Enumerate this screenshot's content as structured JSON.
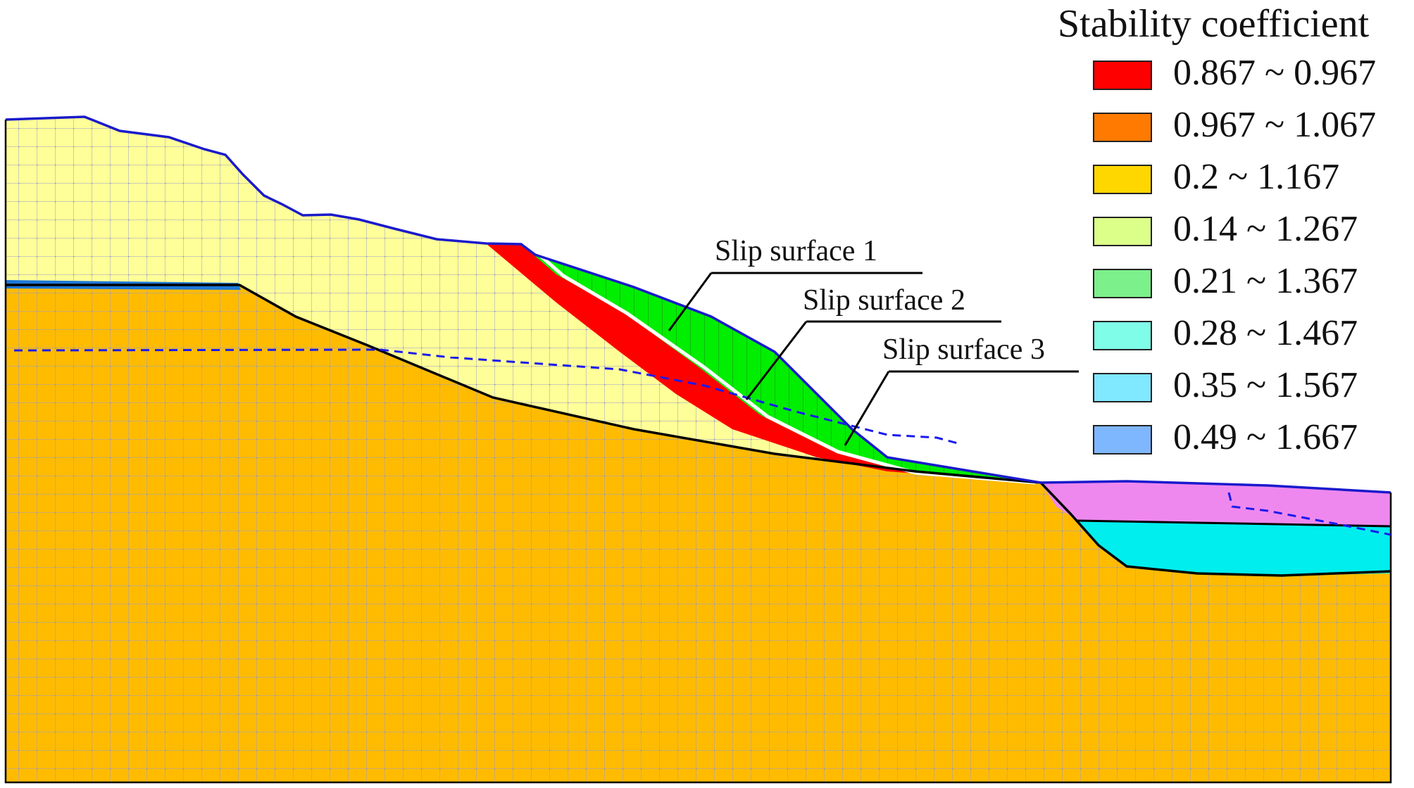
{
  "legend": {
    "title": "Stability coefficient",
    "items": [
      {
        "label": "0.867 ~ 0.967",
        "color": "#ff0000"
      },
      {
        "label": "0.967 ~ 1.067",
        "color": "#ff7a00"
      },
      {
        "label": "0.2 ~ 1.167",
        "color": "#ffd700"
      },
      {
        "label": "0.14 ~ 1.267",
        "color": "#dcff8a"
      },
      {
        "label": "0.21 ~ 1.367",
        "color": "#7cf08a"
      },
      {
        "label": "0.28 ~ 1.467",
        "color": "#7ffde8"
      },
      {
        "label": "0.35 ~ 1.567",
        "color": "#80e8ff"
      },
      {
        "label": "0.49 ~ 1.667",
        "color": "#7fb7ff"
      }
    ]
  },
  "callouts": {
    "slip1": "Slip surface 1",
    "slip2": "Slip surface 2",
    "slip3": "Slip surface 3"
  },
  "colors": {
    "upper_soil": "#ffff99",
    "bedrock": "#ffbb00",
    "slip_zone_red": "#ff0000",
    "slip_block_green": "#00ee00",
    "toe_pink": "#ee88ee",
    "toe_cyan": "#00eeee",
    "top_strip": "#1e78d8",
    "mesh": "#a8a8c8",
    "surface_line": "#1a1acc"
  }
}
